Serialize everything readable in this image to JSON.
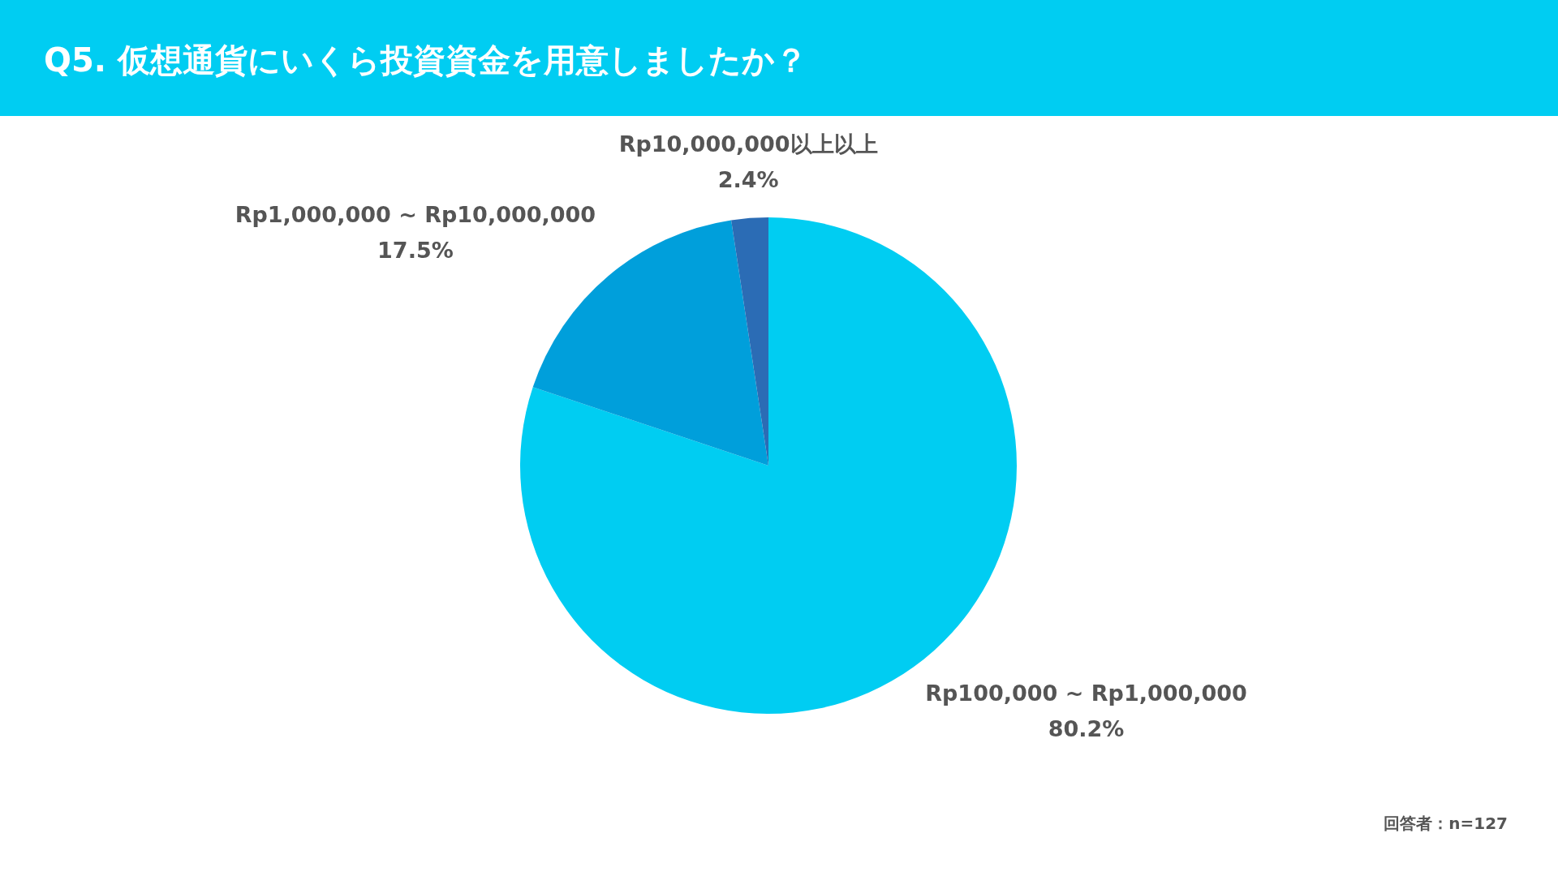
{
  "chart_data": {
    "type": "pie",
    "title": "Q5. 仮想通貨にいくら投資資金を用意しましたか？",
    "categories": [
      "Rp100,000 ~ Rp1,000,000",
      "Rp1,000,000 ~ Rp10,000,000",
      "Rp10,000,000以上以上"
    ],
    "values": [
      80.2,
      17.5,
      2.4
    ],
    "colors": [
      "#00cdf2",
      "#009fdb",
      "#2b6cb5"
    ],
    "value_labels": [
      "80.2%",
      "17.5%",
      "2.4%"
    ],
    "annotations": [
      "回答者：n=127"
    ]
  }
}
